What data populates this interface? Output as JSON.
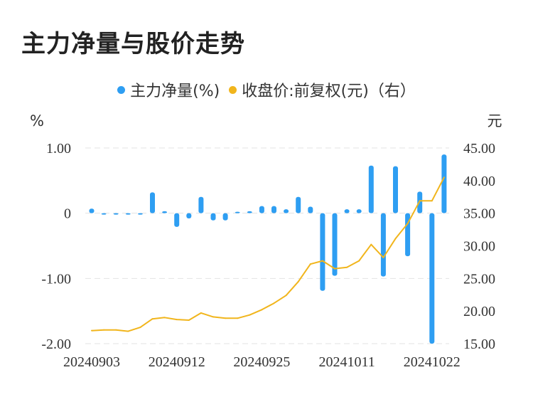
{
  "title": "主力净量与股价走势",
  "chart_data": {
    "type": "bar+line",
    "title": "主力净量与股价走势",
    "legend": {
      "position": "top-center"
    },
    "left_axis": {
      "unit": "%",
      "ticks": [
        "1.00",
        "0",
        "-1.00",
        "-2.00"
      ],
      "ylim": [
        -2,
        1
      ]
    },
    "right_axis": {
      "unit": "元",
      "ticks": [
        "45.00",
        "40.00",
        "35.00",
        "30.00",
        "25.00",
        "20.00",
        "15.00"
      ],
      "ylim": [
        15,
        45
      ]
    },
    "x_tick_labels": [
      "20240903",
      "20240912",
      "20240925",
      "20241011",
      "20241022"
    ],
    "x_tick_index": [
      0,
      7,
      14,
      21,
      28
    ],
    "categories": [
      "1",
      "2",
      "3",
      "4",
      "5",
      "6",
      "7",
      "8",
      "9",
      "10",
      "11",
      "12",
      "13",
      "14",
      "15",
      "16",
      "17",
      "18",
      "19",
      "20",
      "21",
      "22",
      "23",
      "24",
      "25",
      "26",
      "27",
      "28",
      "29",
      "30"
    ],
    "grid": {
      "horizontal": true,
      "style": "dashed"
    },
    "series": [
      {
        "name": "主力净量(%)",
        "type": "bar",
        "axis": "left",
        "color": "#2e9ef2",
        "values": [
          0.07,
          -0.02,
          -0.01,
          -0.01,
          -0.01,
          0.32,
          0.03,
          -0.21,
          -0.08,
          0.25,
          -0.11,
          -0.11,
          0.02,
          0.03,
          0.11,
          0.11,
          0.06,
          0.25,
          0.1,
          -1.19,
          -0.96,
          0.06,
          0.06,
          0.73,
          -0.97,
          0.72,
          -0.66,
          0.33,
          -2.0,
          0.9
        ]
      },
      {
        "name": "收盘价:前复权(元)（右）",
        "type": "line",
        "axis": "right",
        "color": "#f1b51c",
        "values": [
          17.0,
          17.1,
          17.1,
          16.9,
          17.5,
          18.8,
          19.0,
          18.7,
          18.6,
          19.7,
          19.1,
          18.9,
          18.9,
          19.4,
          20.2,
          21.2,
          22.4,
          24.5,
          27.2,
          27.7,
          26.5,
          26.7,
          27.7,
          30.2,
          28.2,
          31.1,
          33.4,
          36.9,
          36.9,
          40.5
        ]
      }
    ]
  }
}
